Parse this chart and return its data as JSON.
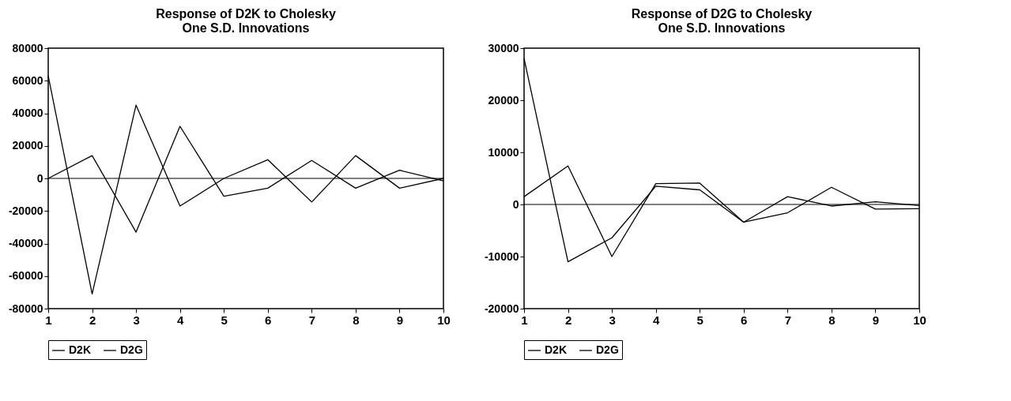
{
  "chart_data": [
    {
      "type": "line",
      "title": "Response of D2K to Cholesky\nOne S.D. Innovations",
      "x": [
        1,
        2,
        3,
        4,
        5,
        6,
        7,
        8,
        9,
        10
      ],
      "series": [
        {
          "name": "D2K",
          "color": "#000000",
          "values": [
            63000,
            -71000,
            45000,
            -17000,
            0,
            11500,
            -14500,
            14000,
            -6000,
            0
          ]
        },
        {
          "name": "D2G",
          "color": "#000000",
          "values": [
            0,
            14000,
            -33000,
            32000,
            -11000,
            -6000,
            11000,
            -6000,
            5000,
            -1500
          ]
        }
      ],
      "xlim": [
        1,
        10
      ],
      "xticks": [
        1,
        2,
        3,
        4,
        5,
        6,
        7,
        8,
        9,
        10
      ],
      "ylim": [
        -80000,
        80000
      ],
      "yticks": [
        -80000,
        -60000,
        -40000,
        -20000,
        0,
        20000,
        40000,
        60000,
        80000
      ],
      "ref_lines": [
        {
          "axis": "y",
          "value": 0
        }
      ],
      "legend": "bottom"
    },
    {
      "type": "line",
      "title": "Response of D2G to Cholesky\nOne S.D. Innovations",
      "x": [
        1,
        2,
        3,
        4,
        5,
        6,
        7,
        8,
        9,
        10
      ],
      "series": [
        {
          "name": "D2K",
          "color": "#000000",
          "values": [
            1500,
            7400,
            -10000,
            4000,
            4100,
            -3400,
            1500,
            -300,
            500,
            -200
          ]
        },
        {
          "name": "D2G",
          "color": "#000000",
          "values": [
            28000,
            -11000,
            -6400,
            3500,
            2800,
            -3400,
            -1600,
            3300,
            -900,
            -800
          ]
        }
      ],
      "xlim": [
        1,
        10
      ],
      "xticks": [
        1,
        2,
        3,
        4,
        5,
        6,
        7,
        8,
        9,
        10
      ],
      "ylim": [
        -20000,
        30000
      ],
      "yticks": [
        -20000,
        -10000,
        0,
        10000,
        20000,
        30000
      ],
      "ref_lines": [
        {
          "axis": "y",
          "value": 0
        }
      ],
      "legend": "bottom"
    }
  ]
}
